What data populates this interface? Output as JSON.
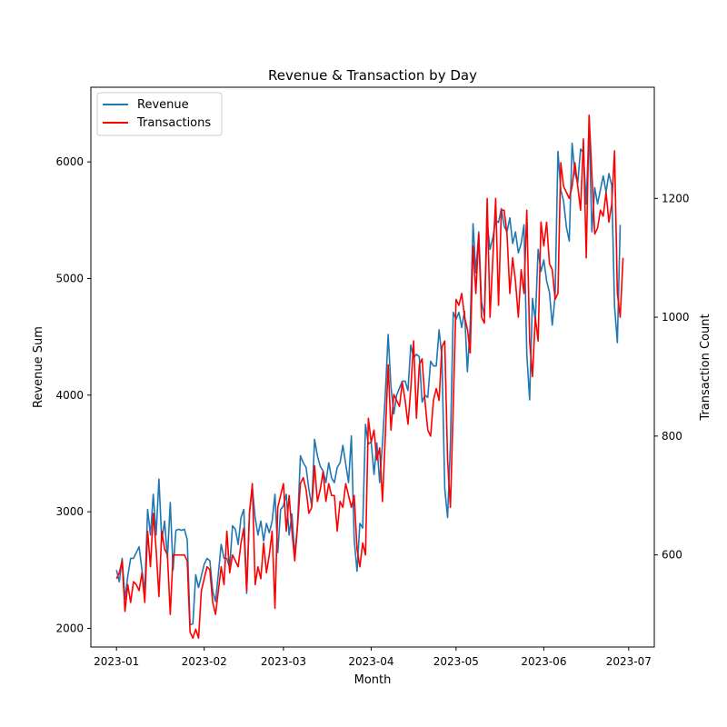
{
  "chart_data": {
    "type": "line",
    "title": "Revenue & Transaction by Day",
    "xlabel": "Month",
    "ylabel_left": "Revenue Sum",
    "ylabel_right": "Transaction Count",
    "x_start": "2023-01-01",
    "x_ticks": [
      "2023-01",
      "2023-02",
      "2023-03",
      "2023-04",
      "2023-05",
      "2023-06",
      "2023-07"
    ],
    "x_tick_dates": [
      "2023-01-01",
      "2023-02-01",
      "2023-03-01",
      "2023-04-01",
      "2023-05-01",
      "2023-06-01",
      "2023-07-01"
    ],
    "y_left_ticks": [
      2000,
      3000,
      4000,
      5000,
      6000
    ],
    "y_right_ticks": [
      600,
      800,
      1000,
      1200
    ],
    "ylim_left": [
      1840,
      6640
    ],
    "ylim_right": [
      445,
      1387
    ],
    "legend_position": "upper-left",
    "grid": false,
    "series": [
      {
        "name": "Revenue",
        "axis": "left",
        "color": "#1f77b4",
        "values": [
          2500,
          2400,
          2600,
          2250,
          2450,
          2600,
          2600,
          2650,
          2700,
          2500,
          2310,
          3020,
          2800,
          3150,
          2800,
          3280,
          2750,
          2920,
          2600,
          3080,
          2500,
          2840,
          2850,
          2840,
          2850,
          2760,
          2030,
          2040,
          2460,
          2350,
          2450,
          2550,
          2600,
          2580,
          2320,
          2230,
          2470,
          2720,
          2600,
          2600,
          2520,
          2880,
          2850,
          2720,
          2950,
          3020,
          2300,
          3000,
          3210,
          2950,
          2800,
          2920,
          2750,
          2900,
          2820,
          2920,
          3150,
          2650,
          3020,
          3050,
          3150,
          2800,
          2980,
          2620,
          2900,
          3480,
          3420,
          3380,
          3190,
          3050,
          3620,
          3480,
          3390,
          3350,
          3250,
          3420,
          3290,
          3250,
          3380,
          3420,
          3570,
          3410,
          3250,
          3650,
          2760,
          2490,
          2900,
          2860,
          3750,
          3580,
          3600,
          3320,
          3590,
          3250,
          3590,
          4010,
          4520,
          4070,
          3840,
          4000,
          4060,
          4120,
          4120,
          4040,
          4430,
          4320,
          4350,
          4330,
          3940,
          4000,
          3980,
          4290,
          4250,
          4250,
          4560,
          4330,
          3200,
          2950,
          3580,
          4710,
          4650,
          4710,
          4580,
          4720,
          4200,
          4600,
          5470,
          5050,
          5400,
          4800,
          4680,
          5480,
          5250,
          5350,
          5500,
          5480,
          5600,
          5450,
          5400,
          5520,
          5300,
          5400,
          5220,
          5300,
          5460,
          4350,
          3960,
          4830,
          4640,
          5250,
          5060,
          5160,
          4980,
          4880,
          4600,
          4850,
          6090,
          5760,
          5660,
          5440,
          5320,
          6160,
          5900,
          5820,
          6110,
          6080,
          5640,
          6310,
          5400,
          5780,
          5640,
          5760,
          5880,
          5740,
          5900,
          5800,
          4760,
          4450,
          5460
        ]
      },
      {
        "name": "Transactions",
        "axis": "right",
        "color": "#ff0000",
        "values": [
          560,
          570,
          590,
          505,
          550,
          520,
          555,
          550,
          540,
          570,
          520,
          640,
          580,
          670,
          610,
          530,
          640,
          610,
          600,
          500,
          600,
          600,
          600,
          600,
          600,
          590,
          470,
          460,
          475,
          460,
          540,
          560,
          580,
          575,
          520,
          500,
          540,
          580,
          550,
          640,
          570,
          600,
          590,
          580,
          620,
          645,
          540,
          670,
          720,
          550,
          580,
          560,
          620,
          570,
          600,
          640,
          510,
          680,
          700,
          720,
          640,
          700,
          640,
          590,
          650,
          720,
          730,
          710,
          670,
          680,
          750,
          690,
          710,
          740,
          690,
          720,
          700,
          700,
          640,
          690,
          680,
          720,
          700,
          680,
          700,
          610,
          580,
          620,
          600,
          830,
          790,
          810,
          760,
          780,
          690,
          800,
          920,
          810,
          870,
          860,
          850,
          890,
          860,
          820,
          880,
          960,
          830,
          920,
          930,
          860,
          810,
          800,
          860,
          880,
          860,
          950,
          960,
          760,
          680,
          850,
          1030,
          1020,
          1040,
          1000,
          980,
          940,
          1120,
          1040,
          1140,
          1000,
          990,
          1200,
          1000,
          1100,
          1200,
          1020,
          1180,
          1180,
          1140,
          1040,
          1100,
          1060,
          1000,
          1080,
          1040,
          1180,
          960,
          900,
          1000,
          960,
          1160,
          1120,
          1160,
          1090,
          1080,
          1030,
          1040,
          1260,
          1220,
          1210,
          1200,
          1220,
          1260,
          1220,
          1180,
          1300,
          1100,
          1340,
          1240,
          1140,
          1150,
          1180,
          1170,
          1210,
          1160,
          1190,
          1280,
          1040,
          1000,
          1100
        ]
      }
    ]
  }
}
